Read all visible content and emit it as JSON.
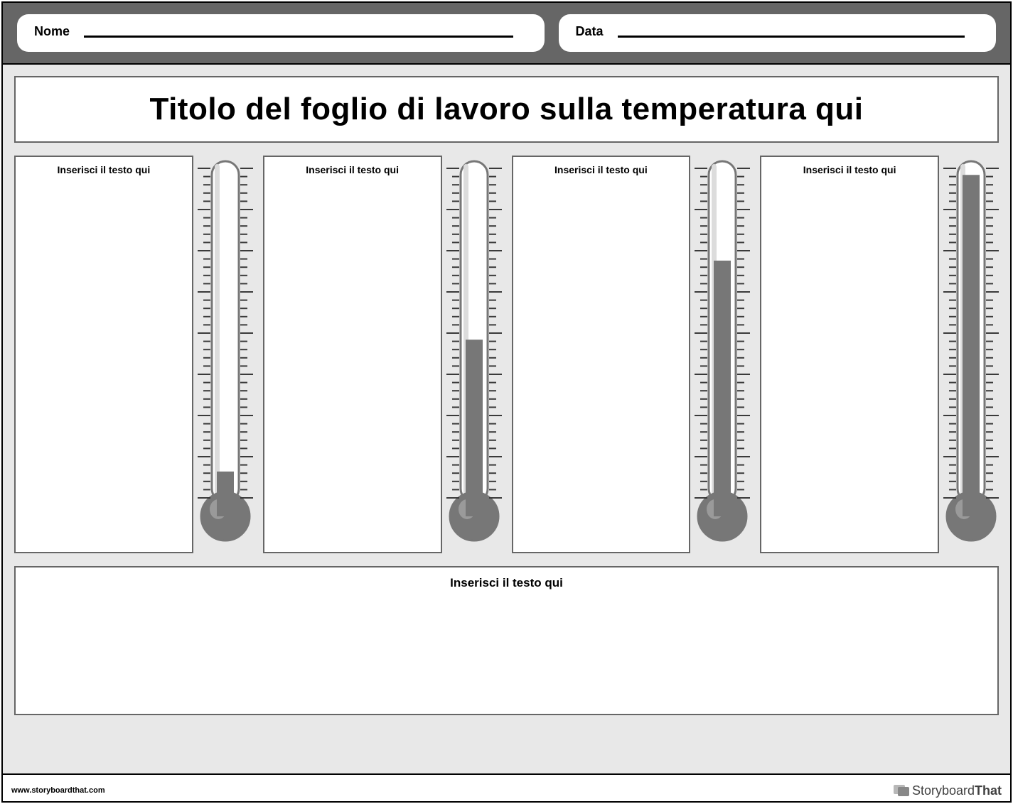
{
  "header": {
    "name_label": "Nome",
    "date_label": "Data"
  },
  "title": "Titolo del foglio di lavoro sulla temperatura qui",
  "colors": {
    "page_bg": "#ffffff",
    "header_bar_bg": "#666666",
    "content_bg": "#e8e8e8",
    "box_bg": "#ffffff",
    "box_border": "#666666",
    "outer_border": "#000000",
    "text_color": "#000000",
    "thermometer_tube_fill": "#ffffff",
    "thermometer_tube_stroke": "#777777",
    "thermometer_tube_highlight": "#dcdcdc",
    "thermometer_liquid": "#777777",
    "thermometer_bulb": "#777777",
    "thermometer_bulb_highlight": "#9a9a9a",
    "tick_color": "#3a3a3a"
  },
  "typography": {
    "title_fontsize": 44,
    "title_fontweight": 900,
    "header_label_fontsize": 18,
    "header_label_fontweight": 700,
    "box_label_fontsize": 14,
    "box_label_fontweight": 700,
    "bottom_label_fontsize": 17,
    "footer_fontsize": 11
  },
  "thermometers": [
    {
      "placeholder": "Inserisci il testo qui",
      "fill_percent": 8
    },
    {
      "placeholder": "Inserisci il testo qui",
      "fill_percent": 48
    },
    {
      "placeholder": "Inserisci il testo qui",
      "fill_percent": 72
    },
    {
      "placeholder": "Inserisci il testo qui",
      "fill_percent": 98
    }
  ],
  "thermometer_style": {
    "tube_width": 38,
    "tube_height": 480,
    "tube_radius": 19,
    "bulb_radius": 34,
    "tick_count": 40,
    "major_every": 5,
    "tick_short_len": 10,
    "tick_long_len": 18,
    "tick_stroke_width": 2
  },
  "bottom_box": {
    "placeholder": "Inserisci il testo qui"
  },
  "footer": {
    "url": "www.storyboardthat.com",
    "brand_light": "Storyboard",
    "brand_bold": "That"
  }
}
